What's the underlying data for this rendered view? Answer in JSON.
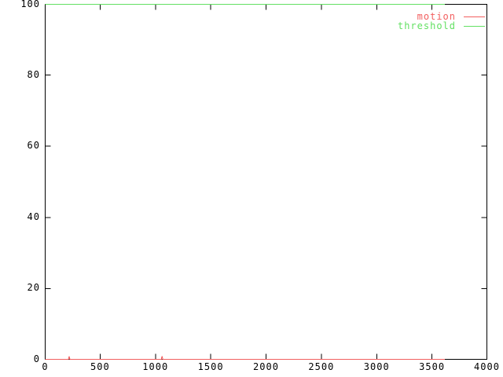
{
  "chart_data": {
    "type": "line",
    "title": "",
    "xlabel": "",
    "ylabel": "",
    "xlim": [
      0,
      4000
    ],
    "ylim": [
      0,
      100
    ],
    "xticks": [
      0,
      500,
      1000,
      1500,
      2000,
      2500,
      3000,
      3500,
      4000
    ],
    "yticks": [
      0,
      20,
      40,
      60,
      80,
      100
    ],
    "grid": false,
    "legend_position": "top-right",
    "background_color": "#ffffff",
    "axis_color": "#000000",
    "series": [
      {
        "name": "motion",
        "color": "#f25f5f",
        "points": [
          [
            0,
            0
          ],
          [
            213,
            0
          ],
          [
            220,
            1
          ],
          [
            227,
            0
          ],
          [
            1053,
            0
          ],
          [
            1060,
            1
          ],
          [
            1067,
            0
          ],
          [
            3615,
            0
          ]
        ]
      },
      {
        "name": "threshold",
        "color": "#63e063",
        "points": [
          [
            0,
            100
          ],
          [
            3615,
            100
          ]
        ]
      }
    ]
  }
}
